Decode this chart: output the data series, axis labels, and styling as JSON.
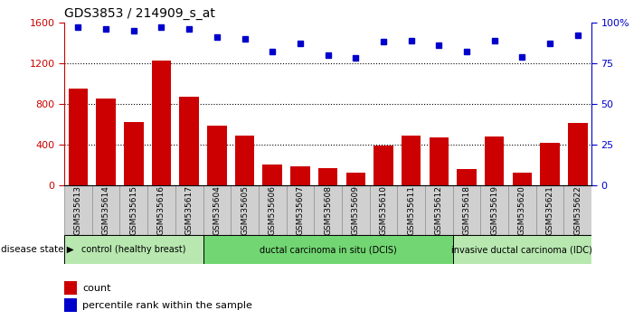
{
  "title": "GDS3853 / 214909_s_at",
  "samples": [
    "GSM535613",
    "GSM535614",
    "GSM535615",
    "GSM535616",
    "GSM535617",
    "GSM535604",
    "GSM535605",
    "GSM535606",
    "GSM535607",
    "GSM535608",
    "GSM535609",
    "GSM535610",
    "GSM535611",
    "GSM535612",
    "GSM535618",
    "GSM535619",
    "GSM535620",
    "GSM535621",
    "GSM535622"
  ],
  "counts": [
    950,
    850,
    620,
    1230,
    870,
    590,
    490,
    210,
    185,
    175,
    130,
    390,
    490,
    470,
    160,
    480,
    130,
    420,
    610
  ],
  "percentiles": [
    97,
    96,
    95,
    97,
    96,
    91,
    90,
    82,
    87,
    80,
    78,
    88,
    89,
    86,
    82,
    89,
    79,
    87,
    92
  ],
  "bar_color": "#cc0000",
  "dot_color": "#0000cc",
  "ylim_left": [
    0,
    1600
  ],
  "ylim_right": [
    0,
    100
  ],
  "yticks_left": [
    0,
    400,
    800,
    1200,
    1600
  ],
  "yticks_right": [
    0,
    25,
    50,
    75,
    100
  ],
  "hgrid_lines": [
    400,
    800,
    1200
  ],
  "group_bounds": [
    {
      "start": 0,
      "end": 4,
      "color": "#b8e8b0",
      "label": "control (healthy breast)"
    },
    {
      "start": 5,
      "end": 13,
      "color": "#72d672",
      "label": "ductal carcinoma in situ (DCIS)"
    },
    {
      "start": 14,
      "end": 18,
      "color": "#b8e8b0",
      "label": "invasive ductal carcinoma (IDC)"
    }
  ],
  "xtick_bg": "#d0d0d0",
  "legend_count_label": "count",
  "legend_pct_label": "percentile rank within the sample",
  "disease_state_label": "disease state"
}
